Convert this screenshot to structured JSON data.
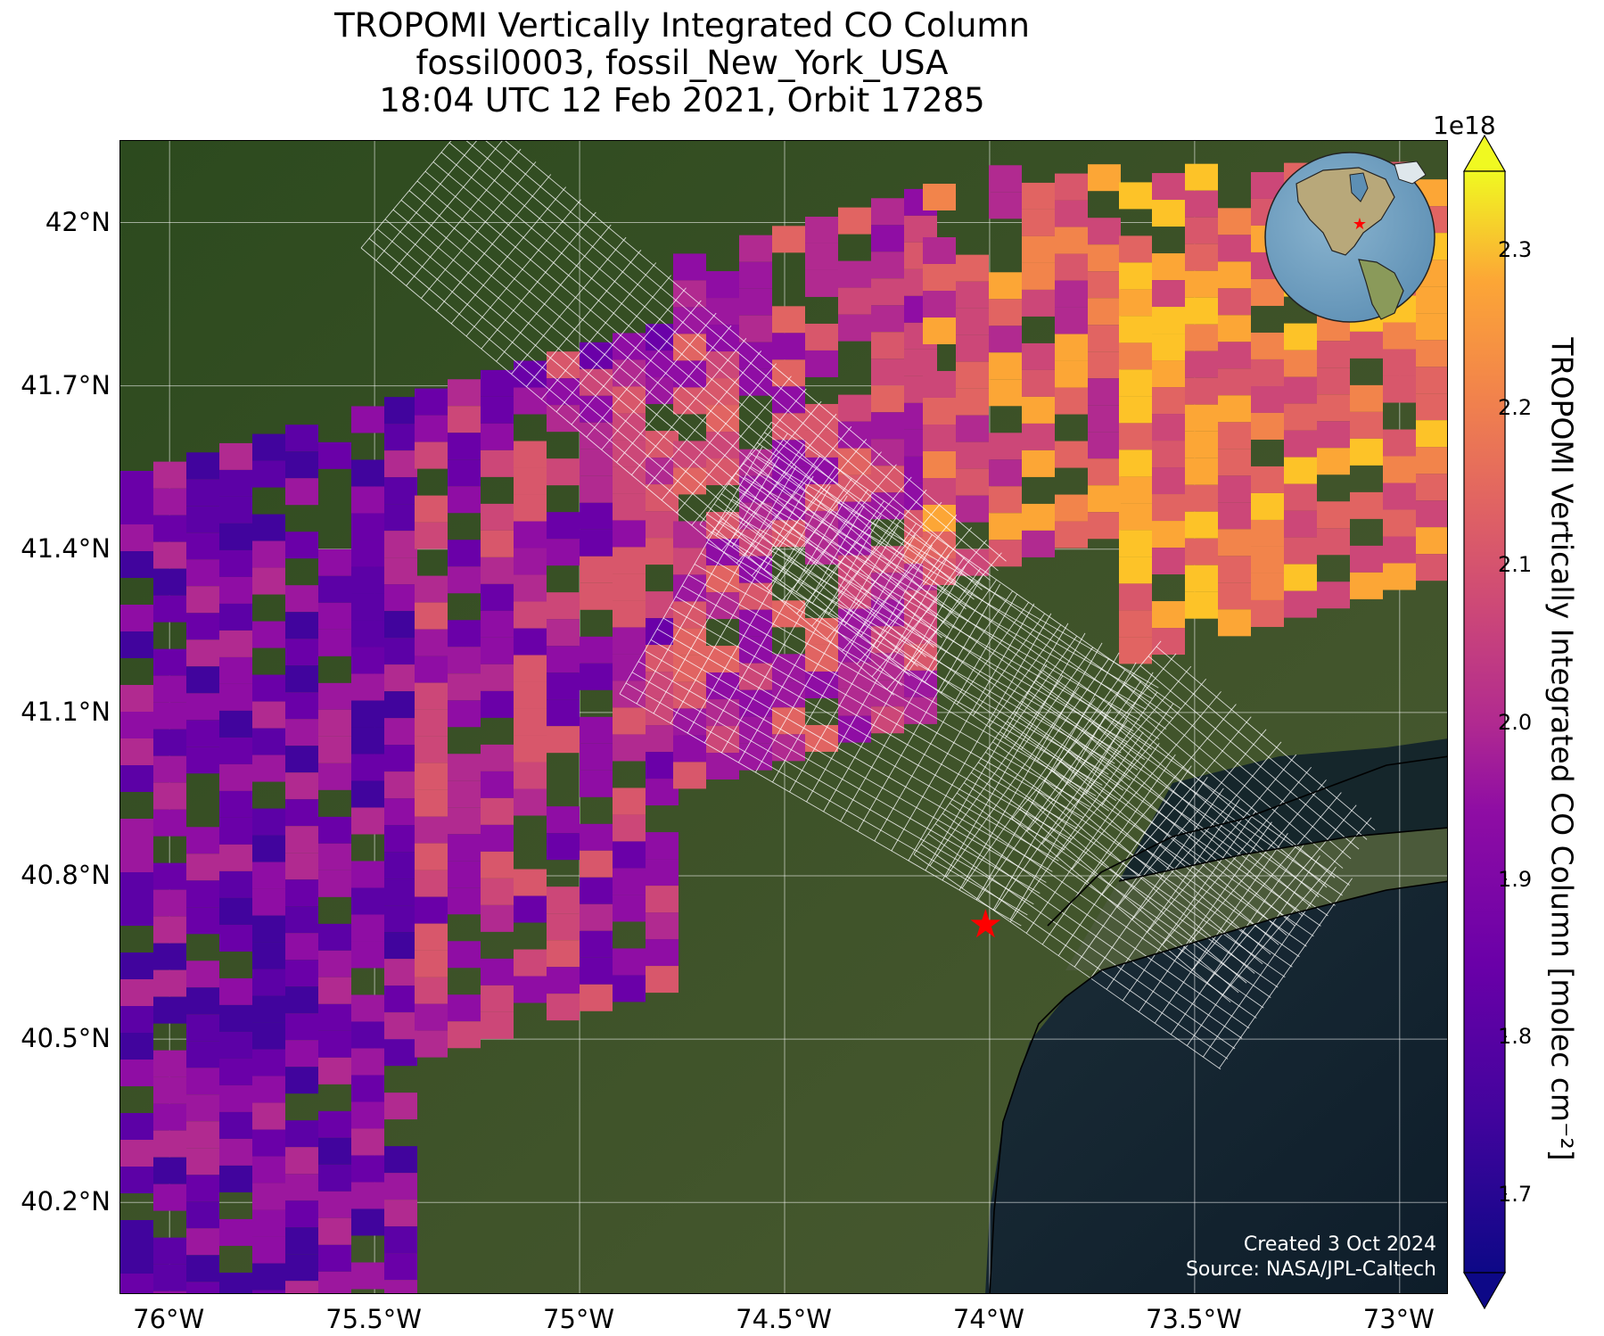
{
  "title": {
    "line1": "TROPOMI Vertically Integrated CO Column",
    "line2": "fossil0003, fossil_New_York_USA",
    "line3": "18:04 UTC 12 Feb 2021, Orbit 17285"
  },
  "map": {
    "lon_range": [
      -76.12,
      -72.88
    ],
    "lat_range": [
      40.03,
      42.15
    ],
    "x_ticks": [
      "76°W",
      "75.5°W",
      "75°W",
      "74.5°W",
      "74°W",
      "73.5°W",
      "73°W"
    ],
    "x_tick_values": [
      -76.0,
      -75.5,
      -75.0,
      -74.5,
      -74.0,
      -73.5,
      -73.0
    ],
    "y_ticks": [
      "42°N",
      "41.7°N",
      "41.4°N",
      "41.1°N",
      "40.8°N",
      "40.5°N",
      "40.2°N"
    ],
    "y_tick_values": [
      42.0,
      41.7,
      41.4,
      41.1,
      40.8,
      40.5,
      40.2
    ],
    "target_site": {
      "lon": -74.01,
      "lat": 40.71,
      "marker": "star-icon",
      "color": "#ff0000"
    },
    "basemap": "satellite imagery",
    "grid": true
  },
  "credit": {
    "created": "Created 3 Oct 2024",
    "source": "Source: NASA/JPL-Caltech"
  },
  "colorbar": {
    "label": "TROPOMI Vertically Integrated CO Column [molec cm⁻²]",
    "multiplier": "1e18",
    "colormap": "plasma",
    "range": [
      1.65,
      2.35
    ],
    "ticks": [
      "1.7",
      "1.8",
      "1.9",
      "2.0",
      "2.1",
      "2.2",
      "2.3"
    ],
    "tick_values": [
      1.7,
      1.8,
      1.9,
      2.0,
      2.1,
      2.2,
      2.3
    ],
    "extend": "both"
  },
  "inset": {
    "type": "orthographic globe",
    "marker": "star-icon",
    "marker_color": "#ff0000"
  }
}
